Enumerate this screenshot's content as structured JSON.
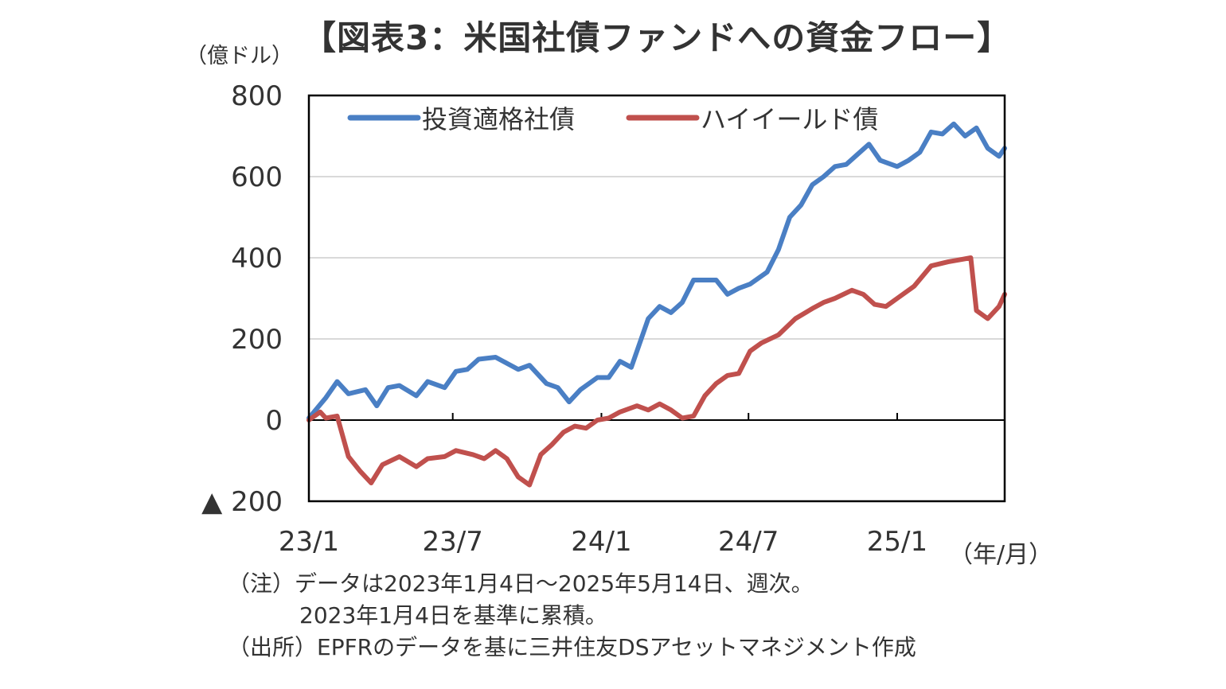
{
  "title": "【図表3：米国社債ファンドへの資金フロー】",
  "unit_label": "（億ドル）",
  "x_unit_label": "（年/月）",
  "notes": {
    "line1": "（注）データは2023年1月4日～2025年5月14日、週次。",
    "line2": "2023年1月4日を基準に累積。",
    "line3": "（出所）EPFRのデータを基に三井住友DSアセットマネジメント作成"
  },
  "colors": {
    "investment_grade": "#4a7fc4",
    "high_yield": "#c0504d",
    "grid": "#d9d9d9",
    "axis": "#000000"
  },
  "chart_data": {
    "type": "line",
    "title": "【図表3：米国社債ファンドへの資金フロー】",
    "ylabel": "（億ドル）",
    "xlabel": "（年/月）",
    "ylim": [
      -200,
      800
    ],
    "yticks": [
      800,
      600,
      400,
      200,
      0,
      -200
    ],
    "ytick_labels": [
      "800",
      "600",
      "400",
      "200",
      "0",
      "▲ 200"
    ],
    "xlim": [
      "2023-01-04",
      "2025-05-14"
    ],
    "xticks": [
      "2023-01-01",
      "2023-07-01",
      "2024-01-01",
      "2024-07-01",
      "2025-01-01"
    ],
    "xtick_labels": [
      "23/1",
      "23/7",
      "24/1",
      "24/7",
      "25/1"
    ],
    "grid": true,
    "legend": "top-left",
    "series": [
      {
        "name": "投資適格社債",
        "x": [
          "2023-01-04",
          "2023-01-25",
          "2023-02-08",
          "2023-02-22",
          "2023-03-15",
          "2023-03-29",
          "2023-04-12",
          "2023-04-26",
          "2023-05-17",
          "2023-05-31",
          "2023-06-21",
          "2023-07-05",
          "2023-07-19",
          "2023-08-02",
          "2023-08-23",
          "2023-09-06",
          "2023-09-20",
          "2023-10-04",
          "2023-10-25",
          "2023-11-08",
          "2023-11-22",
          "2023-12-06",
          "2023-12-27",
          "2024-01-10",
          "2024-01-24",
          "2024-02-07",
          "2024-02-28",
          "2024-03-13",
          "2024-03-27",
          "2024-04-10",
          "2024-04-24",
          "2024-05-08",
          "2024-05-22",
          "2024-06-05",
          "2024-06-19",
          "2024-07-03",
          "2024-07-24",
          "2024-08-07",
          "2024-08-21",
          "2024-09-04",
          "2024-09-18",
          "2024-10-02",
          "2024-10-16",
          "2024-10-30",
          "2024-11-13",
          "2024-11-27",
          "2024-12-11",
          "2025-01-01",
          "2025-01-15",
          "2025-01-29",
          "2025-02-12",
          "2025-02-26",
          "2025-03-12",
          "2025-03-26",
          "2025-04-09",
          "2025-04-23",
          "2025-05-07",
          "2025-05-14"
        ],
        "values": [
          5,
          55,
          95,
          65,
          75,
          35,
          80,
          85,
          60,
          95,
          80,
          120,
          125,
          150,
          155,
          140,
          125,
          135,
          90,
          80,
          45,
          75,
          105,
          105,
          145,
          130,
          250,
          280,
          265,
          290,
          345,
          345,
          345,
          310,
          325,
          335,
          365,
          420,
          500,
          530,
          580,
          600,
          625,
          630,
          655,
          680,
          640,
          625,
          640,
          660,
          710,
          705,
          730,
          700,
          720,
          670,
          650,
          670
        ]
      },
      {
        "name": "ハイイールド債",
        "x": [
          "2023-01-04",
          "2023-01-18",
          "2023-01-25",
          "2023-02-08",
          "2023-02-22",
          "2023-03-08",
          "2023-03-22",
          "2023-04-05",
          "2023-04-26",
          "2023-05-17",
          "2023-05-31",
          "2023-06-21",
          "2023-07-05",
          "2023-07-26",
          "2023-08-09",
          "2023-08-23",
          "2023-09-06",
          "2023-09-20",
          "2023-10-04",
          "2023-10-18",
          "2023-11-01",
          "2023-11-15",
          "2023-11-29",
          "2023-12-13",
          "2023-12-27",
          "2024-01-10",
          "2024-01-24",
          "2024-02-14",
          "2024-02-28",
          "2024-03-13",
          "2024-03-27",
          "2024-04-10",
          "2024-04-24",
          "2024-05-08",
          "2024-05-22",
          "2024-06-05",
          "2024-06-19",
          "2024-07-03",
          "2024-07-17",
          "2024-08-07",
          "2024-08-28",
          "2024-09-18",
          "2024-10-02",
          "2024-10-16",
          "2024-11-06",
          "2024-11-20",
          "2024-12-04",
          "2024-12-18",
          "2025-01-01",
          "2025-01-22",
          "2025-02-12",
          "2025-03-05",
          "2025-03-19",
          "2025-04-02",
          "2025-04-09",
          "2025-04-23",
          "2025-05-07",
          "2025-05-14"
        ],
        "values": [
          0,
          20,
          5,
          10,
          -90,
          -125,
          -155,
          -110,
          -90,
          -115,
          -95,
          -90,
          -75,
          -85,
          -95,
          -75,
          -95,
          -140,
          -160,
          -85,
          -60,
          -30,
          -15,
          -20,
          0,
          5,
          20,
          35,
          25,
          40,
          25,
          5,
          10,
          60,
          90,
          110,
          115,
          170,
          190,
          210,
          250,
          275,
          290,
          300,
          320,
          310,
          285,
          280,
          300,
          330,
          380,
          390,
          395,
          400,
          270,
          250,
          280,
          310
        ]
      }
    ]
  }
}
